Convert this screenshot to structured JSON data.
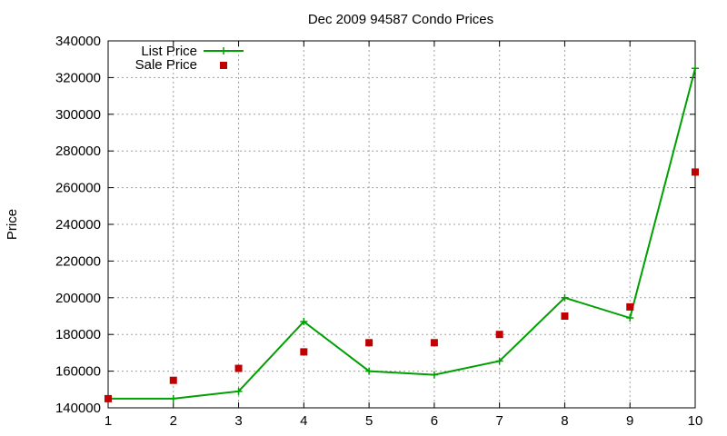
{
  "chart_data": {
    "type": "line",
    "title": "Dec 2009 94587 Condo Prices",
    "xlabel": "",
    "ylabel": "Price",
    "x": [
      1,
      2,
      3,
      4,
      5,
      6,
      7,
      8,
      9,
      10
    ],
    "xlim": [
      1,
      10
    ],
    "ylim": [
      140000,
      340000
    ],
    "yticks": [
      140000,
      160000,
      180000,
      200000,
      220000,
      240000,
      260000,
      280000,
      300000,
      320000,
      340000
    ],
    "xticks": [
      1,
      2,
      3,
      4,
      5,
      6,
      7,
      8,
      9,
      10
    ],
    "grid": true,
    "legend_position": "top-left",
    "series": [
      {
        "name": "List Price",
        "style": "line+cross",
        "color": "#00a000",
        "values": [
          145000,
          145000,
          149000,
          187000,
          160000,
          158000,
          165500,
          200000,
          189000,
          325000
        ]
      },
      {
        "name": "Sale Price",
        "style": "square-points",
        "color": "#c00000",
        "values": [
          145000,
          155000,
          161500,
          170500,
          175500,
          175500,
          180000,
          190000,
          195000,
          268500
        ]
      }
    ]
  }
}
